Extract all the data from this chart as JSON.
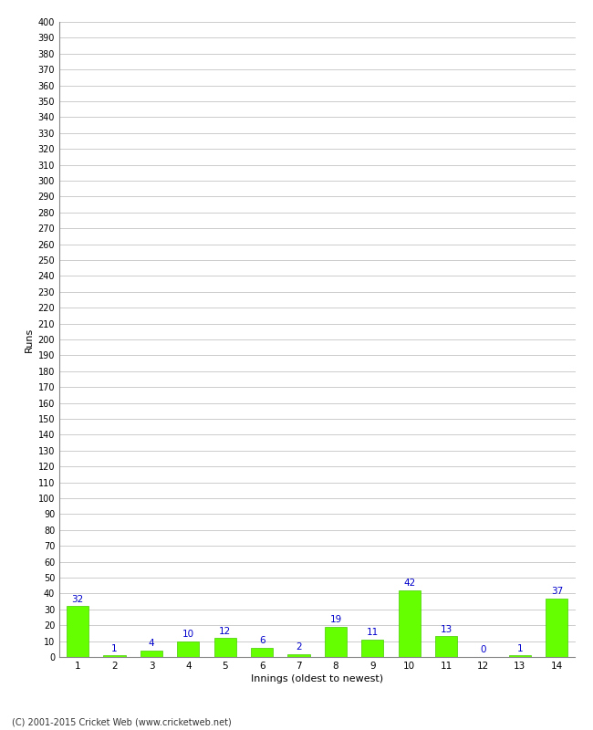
{
  "categories": [
    "1",
    "2",
    "3",
    "4",
    "5",
    "6",
    "7",
    "8",
    "9",
    "10",
    "11",
    "12",
    "13",
    "14"
  ],
  "values": [
    32,
    1,
    4,
    10,
    12,
    6,
    2,
    19,
    11,
    42,
    13,
    0,
    1,
    37
  ],
  "bar_color": "#66ff00",
  "bar_edge_color": "#44cc00",
  "label_color": "#0000cc",
  "ylabel": "Runs",
  "xlabel": "Innings (oldest to newest)",
  "ytick_step": 10,
  "ymin": 0,
  "ymax": 400,
  "grid_color": "#cccccc",
  "background_color": "#ffffff",
  "footer": "(C) 2001-2015 Cricket Web (www.cricketweb.net)"
}
